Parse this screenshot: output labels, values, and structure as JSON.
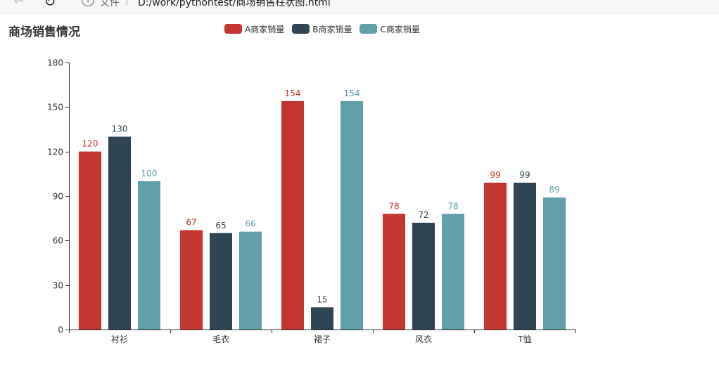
{
  "browser": {
    "back_icon": "back-arrow-icon",
    "reload_icon": "reload-icon",
    "info_icon": "info-icon",
    "address_label": "文件",
    "address_separator": "|",
    "url": "D:/work/pythontest/商场销售柱状图.html"
  },
  "colors": {
    "series": [
      "#c23531",
      "#2f4554",
      "#61a0a8"
    ],
    "axis": "#333333"
  },
  "chart_data": {
    "type": "bar",
    "title": "商场销售情况",
    "categories": [
      "衬衫",
      "毛衣",
      "裙子",
      "风衣",
      "T恤"
    ],
    "series": [
      {
        "name": "A商家销量",
        "values": [
          120,
          67,
          154,
          78,
          99
        ]
      },
      {
        "name": "B商家销量",
        "values": [
          130,
          65,
          15,
          72,
          99
        ]
      },
      {
        "name": "C商家销量",
        "values": [
          100,
          66,
          154,
          78,
          89
        ]
      }
    ],
    "ylim": [
      0,
      180
    ],
    "yticks": [
      0,
      30,
      60,
      90,
      120,
      150,
      180
    ],
    "xlabel": "",
    "ylabel": "",
    "grid": false,
    "legend_position": "top"
  }
}
